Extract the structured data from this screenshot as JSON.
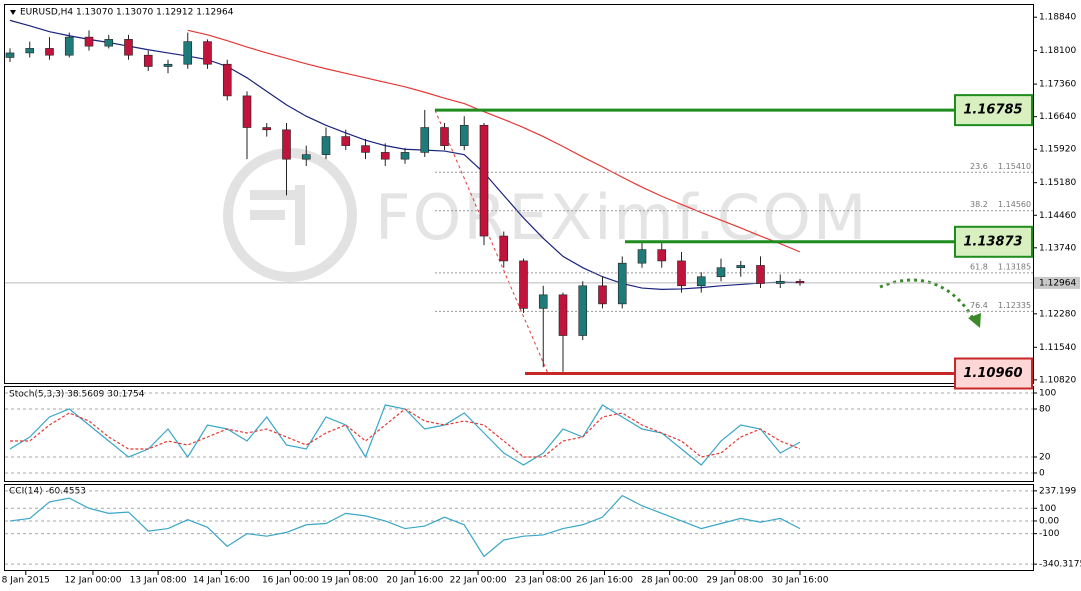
{
  "chart_data": [
    {
      "type": "candlestick",
      "title": "EURUSD,H4  1.13070 1.13070 1.12912 1.12964",
      "watermark": "FOREXimf.COM",
      "ylim": [
        1.1075,
        1.1911
      ],
      "yticks": [
        {
          "value": 1.1884,
          "label": "1.18840"
        },
        {
          "value": 1.181,
          "label": "1.18100"
        },
        {
          "value": 1.1736,
          "label": "1.17360"
        },
        {
          "value": 1.1664,
          "label": "1.16640"
        },
        {
          "value": 1.1592,
          "label": "1.15920"
        },
        {
          "value": 1.1518,
          "label": "1.15180"
        },
        {
          "value": 1.1446,
          "label": "1.14460"
        },
        {
          "value": 1.1374,
          "label": "1.13740"
        },
        {
          "value": 1.13,
          "label": "1.13000"
        },
        {
          "value": 1.1228,
          "label": "1.12280"
        },
        {
          "value": 1.1154,
          "label": "1.11540"
        },
        {
          "value": 1.1082,
          "label": "1.10820"
        }
      ],
      "open": [
        1.1795,
        1.1805,
        1.1815,
        1.18,
        1.184,
        1.182,
        1.1835,
        1.18,
        1.1775,
        1.178,
        1.183,
        1.178,
        1.171,
        1.164,
        1.1635,
        1.157,
        1.158,
        1.162,
        1.16,
        1.1585,
        1.157,
        1.1585,
        1.164,
        1.16,
        1.1645,
        1.14,
        1.1345,
        1.124,
        1.127,
        1.118,
        1.129,
        1.125,
        1.134,
        1.137,
        1.1345,
        1.129,
        1.131,
        1.133,
        1.1335,
        1.1295,
        1.13
      ],
      "high": [
        1.1815,
        1.183,
        1.184,
        1.185,
        1.1855,
        1.1845,
        1.1845,
        1.181,
        1.179,
        1.185,
        1.1835,
        1.179,
        1.172,
        1.165,
        1.165,
        1.16,
        1.164,
        1.1635,
        1.1615,
        1.1605,
        1.1595,
        1.1679,
        1.165,
        1.1665,
        1.165,
        1.141,
        1.135,
        1.129,
        1.1275,
        1.13,
        1.131,
        1.1355,
        1.1387,
        1.1385,
        1.1365,
        1.132,
        1.135,
        1.1345,
        1.1355,
        1.1315,
        1.1305
      ],
      "low": [
        1.1785,
        1.1795,
        1.179,
        1.1795,
        1.181,
        1.1815,
        1.179,
        1.1765,
        1.176,
        1.177,
        1.177,
        1.17,
        1.157,
        1.162,
        1.149,
        1.1555,
        1.157,
        1.159,
        1.157,
        1.1555,
        1.156,
        1.1575,
        1.159,
        1.159,
        1.138,
        1.133,
        1.123,
        1.111,
        1.11,
        1.117,
        1.124,
        1.124,
        1.133,
        1.133,
        1.1275,
        1.1275,
        1.13,
        1.131,
        1.1285,
        1.1285,
        1.129
      ],
      "close": [
        1.1805,
        1.1815,
        1.18,
        1.184,
        1.182,
        1.1835,
        1.18,
        1.1775,
        1.178,
        1.183,
        1.178,
        1.171,
        1.164,
        1.1635,
        1.157,
        1.158,
        1.162,
        1.16,
        1.1585,
        1.157,
        1.1585,
        1.164,
        1.16,
        1.1645,
        1.14,
        1.1345,
        1.124,
        1.127,
        1.118,
        1.129,
        1.125,
        1.134,
        1.137,
        1.1345,
        1.129,
        1.131,
        1.133,
        1.1335,
        1.1295,
        1.13,
        1.12964
      ],
      "up_color": "#1f7a7a",
      "down_color": "#c0143c",
      "series": [
        {
          "color": "#1a237e",
          "values": [
            1.1877,
            1.1865,
            1.1852,
            1.1843,
            1.1835,
            1.1828,
            1.182,
            1.1812,
            1.1805,
            1.1798,
            1.179,
            1.1775,
            1.175,
            1.172,
            1.169,
            1.1665,
            1.1645,
            1.1628,
            1.1612,
            1.16,
            1.1592,
            1.159,
            1.1588,
            1.158,
            1.154,
            1.149,
            1.144,
            1.1395,
            1.1355,
            1.133,
            1.131,
            1.1295,
            1.1285,
            1.1282,
            1.1283,
            1.1286,
            1.129,
            1.1293,
            1.1296,
            1.1298,
            1.1297
          ]
        },
        {
          "color": "#e53935",
          "values": [
            null,
            null,
            null,
            null,
            null,
            null,
            null,
            null,
            null,
            1.1855,
            1.1845,
            1.1832,
            1.1818,
            1.1805,
            1.1793,
            1.1781,
            1.177,
            1.176,
            1.175,
            1.174,
            1.173,
            1.1718,
            1.1705,
            1.1693,
            1.1675,
            1.1658,
            1.164,
            1.162,
            1.1598,
            1.1575,
            1.1553,
            1.153,
            1.1508,
            1.1488,
            1.147,
            1.1452,
            1.1435,
            1.1418,
            1.14,
            1.1383,
            1.1365
          ]
        }
      ],
      "fib_levels": [
        {
          "ratio": 23.6,
          "price": {
            "value": 1.1541,
            "label": "1.15410"
          }
        },
        {
          "ratio": 38.2,
          "price": {
            "value": 1.1456,
            "label": "1.14560"
          }
        },
        {
          "ratio": 61.8,
          "price": 1.13185
        },
        {
          "ratio": 76.4,
          "price": 1.12335
        }
      ],
      "levels": [
        {
          "price": 1.16785,
          "color": "#1e8c1e",
          "fill": "#d8efc0"
        },
        {
          "price": 1.13873,
          "color": "#1e8c1e",
          "fill": "#d8efc0"
        },
        {
          "price": {
            "value": 1.1096,
            "label": "1.10960"
          },
          "color": "#c62828",
          "fill": "#ffd6d6"
        }
      ],
      "current_price": 1.12964
    },
    {
      "type": "line",
      "title": "Stoch(5,3,3) 38.5609 30.1754",
      "ylim": [
        -8.75,
        106.25
      ],
      "yticks": [
        0,
        20,
        80,
        100
      ],
      "series": [
        {
          "color": "#3aa6c8",
          "values": [
            30,
            45,
            70,
            80,
            60,
            40,
            20,
            30,
            55,
            20,
            60,
            55,
            40,
            70,
            35,
            30,
            70,
            60,
            20,
            85,
            80,
            55,
            60,
            75,
            50,
            25,
            10,
            25,
            55,
            45,
            85,
            70,
            55,
            50,
            30,
            10,
            40,
            60,
            55,
            25,
            38.5609
          ]
        },
        {
          "color": "#e53935",
          "dash": true,
          "values": [
            40,
            40,
            60,
            75,
            65,
            45,
            30,
            30,
            40,
            35,
            45,
            55,
            50,
            55,
            45,
            35,
            50,
            60,
            40,
            60,
            80,
            65,
            60,
            65,
            60,
            40,
            20,
            20,
            40,
            45,
            70,
            75,
            60,
            50,
            40,
            20,
            25,
            45,
            55,
            40,
            30.1754
          ]
        }
      ]
    },
    {
      "type": "line",
      "title": "CCI(14) -60.4553",
      "ylim": [
        -386.5,
        283.4
      ],
      "yticks": [
        237.199,
        100,
        {
          "value": 0,
          "label": "0.00"
        },
        -100,
        -340.3175
      ],
      "series": [
        {
          "color": "#3aa6c8",
          "values": [
            0,
            20,
            150,
            180,
            100,
            60,
            70,
            -80,
            -60,
            10,
            -50,
            -200,
            -100,
            -120,
            -90,
            -30,
            -20,
            60,
            40,
            0,
            -60,
            -40,
            30,
            -30,
            -280,
            -150,
            -120,
            -110,
            -60,
            -30,
            30,
            200,
            120,
            60,
            0,
            -60,
            -20,
            20,
            -10,
            20,
            -60.4553
          ]
        }
      ],
      "xticks": [
        {
          "value": 0.8,
          "label": "8 Jan 2015"
        },
        {
          "value": 4.2,
          "label": "12 Jan 00:00"
        },
        {
          "value": 7.5,
          "label": "13 Jan 08:00"
        },
        {
          "value": 10.7,
          "label": "14 Jan 16:00"
        },
        {
          "value": 14.2,
          "label": "16 Jan 00:00"
        },
        {
          "value": 17.2,
          "label": "19 Jan 08:00"
        },
        {
          "value": 20.5,
          "label": "20 Jan 16:00"
        },
        {
          "value": 23.7,
          "label": "22 Jan 00:00"
        },
        {
          "value": 27,
          "label": "23 Jan 08:00"
        },
        {
          "value": 30.1,
          "label": "26 Jan 16:00"
        },
        {
          "value": 33.4,
          "label": "28 Jan 00:00"
        },
        {
          "value": 36.7,
          "label": "29 Jan 08:00"
        },
        {
          "value": 40,
          "label": "30 Jan 16:00"
        }
      ]
    }
  ]
}
